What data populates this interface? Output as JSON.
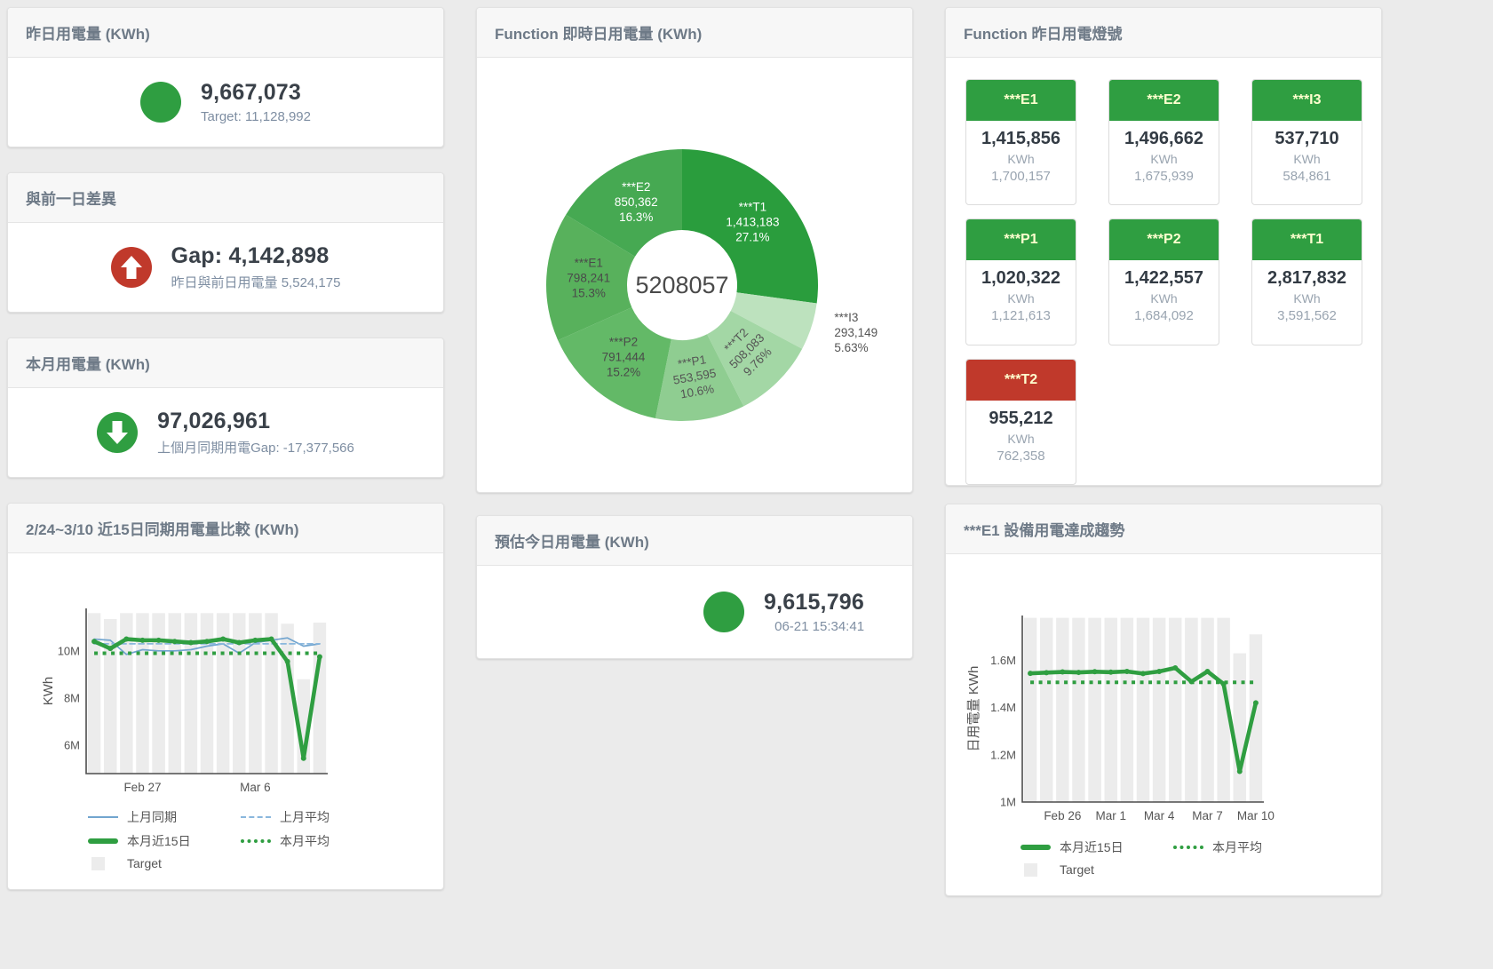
{
  "page_bg": "#ebebeb",
  "status_colors": {
    "green": "#2f9e41",
    "red": "#c0392b"
  },
  "kpi_cards": [
    {
      "title": "昨日用電量 (KWh)",
      "icon": "circle",
      "icon_color": "#2f9e41",
      "value": "9,667,073",
      "sub": "Target: 11,128,992"
    },
    {
      "title": "與前一日差異",
      "icon": "arrow-up-circle",
      "icon_color": "#c0392b",
      "value": "Gap: 4,142,898",
      "sub": "昨日與前日用電量 5,524,175"
    },
    {
      "title": "本月用電量 (KWh)",
      "icon": "arrow-down-circle",
      "icon_color": "#2f9e41",
      "value": "97,026,961",
      "sub": "上個月同期用電Gap: -17,377,566"
    },
    {
      "title": "預估今日用電量 (KWh)",
      "icon": "circle",
      "icon_color": "#2f9e41",
      "value": "9,615,796",
      "sub": "06-21 15:34:41"
    }
  ],
  "lights": {
    "title": "Function 昨日用電燈號",
    "unit": "KWh",
    "tiles": [
      {
        "name": "***E1",
        "value": "1,415,856",
        "target": "1,700,157",
        "status": "green"
      },
      {
        "name": "***E2",
        "value": "1,496,662",
        "target": "1,675,939",
        "status": "green"
      },
      {
        "name": "***I3",
        "value": "537,710",
        "target": "584,861",
        "status": "green"
      },
      {
        "name": "***P1",
        "value": "1,020,322",
        "target": "1,121,613",
        "status": "green"
      },
      {
        "name": "***P2",
        "value": "1,422,557",
        "target": "1,684,092",
        "status": "green"
      },
      {
        "name": "***T1",
        "value": "2,817,832",
        "target": "3,591,562",
        "status": "green"
      },
      {
        "name": "***T2",
        "value": "955,212",
        "target": "762,358",
        "status": "red"
      }
    ]
  },
  "chart_data": [
    {
      "type": "pie",
      "card_title": "Function 即時日用電量 (KWh)",
      "center_total": "5208057",
      "slices": [
        {
          "name": "***T1",
          "value": 1413183,
          "value_label": "1,413,183",
          "pct_label": "27.1%",
          "color": "#2a9d3d",
          "label_color": "#ffffff"
        },
        {
          "name": "***I3",
          "value": 293149,
          "value_label": "293,149",
          "pct_label": "5.63%",
          "color": "#bde2be",
          "label_color": "#555555",
          "outside": true
        },
        {
          "name": "***T2",
          "value": 508083,
          "value_label": "508,083",
          "pct_label": "9.76%",
          "color": "#a3d7a5",
          "label_color": "#555555",
          "label_rotate": -45
        },
        {
          "name": "***P1",
          "value": 553595,
          "value_label": "553,595",
          "pct_label": "10.6%",
          "color": "#8fcd91",
          "label_color": "#555555",
          "label_rotate": -10
        },
        {
          "name": "***P2",
          "value": 791444,
          "value_label": "791,444",
          "pct_label": "15.2%",
          "color": "#63b967",
          "label_color": "#4a4a4a"
        },
        {
          "name": "***E1",
          "value": 798241,
          "value_label": "798,241",
          "pct_label": "15.3%",
          "color": "#58b15c",
          "label_color": "#4a4a4a"
        },
        {
          "name": "***E2",
          "value": 850362,
          "value_label": "850,362",
          "pct_label": "16.3%",
          "color": "#46a952",
          "label_color": "#ffffff"
        }
      ]
    },
    {
      "type": "line",
      "card_title": "2/24~3/10 近15日同期用電量比較 (KWh)",
      "ylabel": "KWh",
      "ylim": [
        4800000,
        11800000
      ],
      "yticks": [
        {
          "v": 6000000,
          "label": "6M"
        },
        {
          "v": 8000000,
          "label": "8M"
        },
        {
          "v": 10000000,
          "label": "10M"
        }
      ],
      "n": 15,
      "xticks": [
        {
          "i": 3,
          "label": "Feb 27"
        },
        {
          "i": 10,
          "label": "Mar 6"
        }
      ],
      "bars": {
        "name": "Target",
        "color": "#ececec",
        "values": [
          11600000,
          11350000,
          11600000,
          11600000,
          11600000,
          11600000,
          11600000,
          11600000,
          11600000,
          11600000,
          11600000,
          11600000,
          11150000,
          8800000,
          11200000
        ]
      },
      "series": [
        {
          "name": "上月同期",
          "color": "#72a5cf",
          "style": "thin",
          "values": [
            10500000,
            10450000,
            9850000,
            10050000,
            10000000,
            10000000,
            10050000,
            10200000,
            10300000,
            9900000,
            10350000,
            10450000,
            10550000,
            10200000,
            10300000
          ]
        },
        {
          "name": "上月平均",
          "color": "#8ab7dd",
          "style": "dashed",
          "const": 10300000
        },
        {
          "name": "本月近15日",
          "color": "#2f9e41",
          "style": "thick",
          "values": [
            10400000,
            10100000,
            10500000,
            10450000,
            10450000,
            10400000,
            10350000,
            10400000,
            10500000,
            10350000,
            10450000,
            10500000,
            9550000,
            5450000,
            9750000
          ]
        },
        {
          "name": "本月平均",
          "color": "#2f9e41",
          "style": "dotted",
          "const": 9900000
        }
      ],
      "legend_rows": [
        [
          {
            "label": "上月同期",
            "swatch": "thin",
            "color": "#72a5cf"
          },
          {
            "label": "上月平均",
            "swatch": "dashed",
            "color": "#8ab7dd"
          }
        ],
        [
          {
            "label": "本月近15日",
            "swatch": "thick",
            "color": "#2f9e41"
          },
          {
            "label": "本月平均",
            "swatch": "dotted",
            "color": "#2f9e41"
          }
        ],
        [
          {
            "label": "Target",
            "swatch": "square",
            "color": "#ececec"
          }
        ]
      ]
    },
    {
      "type": "line",
      "card_title": "***E1 設備用電達成趨勢",
      "ylabel": "日用電量 KWh",
      "ylim": [
        1000000,
        1790000
      ],
      "yticks": [
        {
          "v": 1000000,
          "label": "1M"
        },
        {
          "v": 1200000,
          "label": "1.2M"
        },
        {
          "v": 1400000,
          "label": "1.4M"
        },
        {
          "v": 1600000,
          "label": "1.6M"
        }
      ],
      "n": 15,
      "xticks": [
        {
          "i": 2,
          "label": "Feb 26"
        },
        {
          "i": 5,
          "label": "Mar 1"
        },
        {
          "i": 8,
          "label": "Mar 4"
        },
        {
          "i": 11,
          "label": "Mar 7"
        },
        {
          "i": 14,
          "label": "Mar 10"
        }
      ],
      "bars": {
        "name": "Target",
        "color": "#ececec",
        "values": [
          1780000,
          1780000,
          1780000,
          1780000,
          1780000,
          1780000,
          1780000,
          1780000,
          1780000,
          1780000,
          1780000,
          1780000,
          1780000,
          1630000,
          1710000
        ]
      },
      "series": [
        {
          "name": "本月近15日",
          "color": "#2f9e41",
          "style": "thick",
          "values": [
            1545000,
            1548000,
            1551000,
            1549000,
            1552000,
            1550000,
            1553000,
            1544000,
            1553000,
            1568000,
            1510000,
            1553000,
            1500000,
            1130000,
            1420000
          ]
        },
        {
          "name": "本月平均",
          "color": "#2f9e41",
          "style": "dotted",
          "const": 1507000
        }
      ],
      "legend_rows": [
        [
          {
            "label": "本月近15日",
            "swatch": "thick",
            "color": "#2f9e41"
          },
          {
            "label": "本月平均",
            "swatch": "dotted",
            "color": "#2f9e41"
          }
        ],
        [
          {
            "label": "Target",
            "swatch": "square",
            "color": "#ececec"
          }
        ]
      ]
    }
  ]
}
